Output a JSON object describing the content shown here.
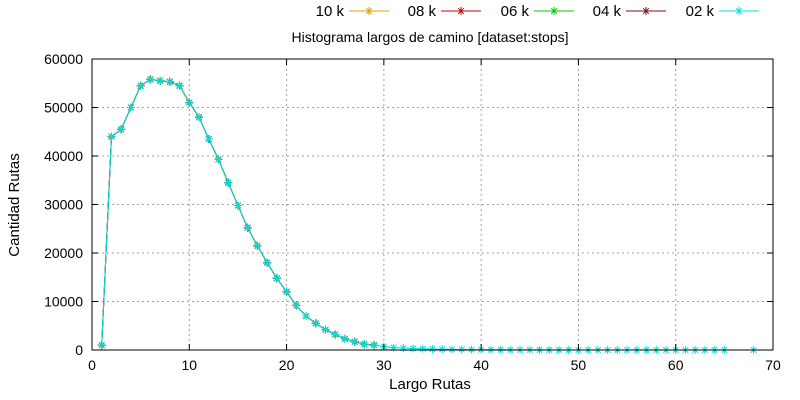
{
  "chart_data": {
    "type": "line",
    "title": "Histograma largos de camino [dataset:stops]",
    "xlabel": "Largo Rutas",
    "ylabel": "Cantidad Rutas",
    "xlim": [
      0,
      70
    ],
    "ylim": [
      0,
      60000
    ],
    "xticks": [
      0,
      10,
      20,
      30,
      40,
      50,
      60,
      70
    ],
    "yticks": [
      0,
      10000,
      20000,
      30000,
      40000,
      50000,
      60000
    ],
    "grid": true,
    "legend_position": "top",
    "series": [
      {
        "name": "10 k",
        "color": "#e0a000",
        "x": [
          1,
          2,
          3,
          4,
          5,
          6,
          7,
          8,
          9,
          10,
          11,
          12,
          13,
          14,
          15,
          16,
          17,
          18,
          19,
          20,
          21,
          22,
          23,
          24,
          25,
          26,
          27,
          28,
          29
        ],
        "y": [
          1000,
          44000,
          45500,
          50000,
          54500,
          55800,
          55500,
          55300,
          54500,
          51000,
          48000,
          43500,
          39300,
          34500,
          29800,
          25200,
          21500,
          18000,
          14800,
          12000,
          9200,
          7000,
          5500,
          4200,
          3200,
          2300,
          1700,
          1200,
          1000
        ]
      },
      {
        "name": "08 k",
        "color": "#cc0000",
        "x": [
          1,
          2,
          3,
          4,
          5,
          6,
          7,
          8,
          9,
          10,
          11,
          12,
          13,
          14,
          15,
          16,
          17,
          18,
          19,
          20,
          21,
          22,
          23,
          24,
          25,
          26,
          27,
          28,
          29
        ],
        "y": [
          1000,
          44000,
          45500,
          50000,
          54500,
          55800,
          55500,
          55300,
          54500,
          51000,
          48000,
          43500,
          39300,
          34500,
          29800,
          25200,
          21500,
          18000,
          14800,
          12000,
          9200,
          7000,
          5500,
          4200,
          3200,
          2300,
          1700,
          1200,
          1000
        ]
      },
      {
        "name": "06 k",
        "color": "#00cc00",
        "x": [
          1,
          2,
          3,
          4,
          5,
          6,
          7,
          8,
          9,
          10,
          11,
          12,
          13,
          14,
          15,
          16,
          17,
          18,
          19,
          20,
          21,
          22,
          23,
          24,
          25,
          26,
          27,
          28,
          29
        ],
        "y": [
          1000,
          44000,
          45500,
          50000,
          54500,
          55800,
          55500,
          55300,
          54500,
          51000,
          48000,
          43500,
          39300,
          34500,
          29800,
          25200,
          21500,
          18000,
          14800,
          12000,
          9200,
          7000,
          5500,
          4200,
          3200,
          2300,
          1700,
          1200,
          1000
        ]
      },
      {
        "name": "04 k",
        "color": "#7a1020",
        "x": [
          1,
          2,
          3,
          4,
          5,
          6,
          7,
          8,
          9,
          10,
          11,
          12,
          13,
          14,
          15,
          16,
          17,
          18,
          19,
          20,
          21,
          22,
          23,
          24,
          25,
          26,
          27,
          28,
          29
        ],
        "y": [
          1000,
          44000,
          45500,
          50000,
          54500,
          55800,
          55500,
          55300,
          54500,
          51000,
          48000,
          43500,
          39300,
          34500,
          29800,
          25200,
          21500,
          18000,
          14800,
          12000,
          9200,
          7000,
          5500,
          4200,
          3200,
          2300,
          1700,
          1200,
          1000
        ]
      },
      {
        "name": "02 k",
        "color": "#00e0e0",
        "x": [
          1,
          2,
          3,
          4,
          5,
          6,
          7,
          8,
          9,
          10,
          11,
          12,
          13,
          14,
          15,
          16,
          17,
          18,
          19,
          20,
          21,
          22,
          23,
          24,
          25,
          26,
          27,
          28,
          29,
          30,
          31,
          32,
          33,
          34,
          35,
          36,
          37,
          38,
          39,
          40,
          41,
          42,
          43,
          44,
          45,
          46,
          47,
          48,
          49,
          50,
          51,
          52,
          53,
          54,
          55,
          56,
          57,
          58,
          59,
          60,
          61,
          62,
          63,
          64,
          65,
          68
        ],
        "y": [
          1000,
          44000,
          45500,
          50000,
          54500,
          55800,
          55500,
          55300,
          54500,
          51000,
          48000,
          43500,
          39300,
          34500,
          29800,
          25200,
          21500,
          18000,
          14800,
          12000,
          9200,
          7000,
          5500,
          4200,
          3200,
          2300,
          1700,
          1200,
          1000,
          700,
          500,
          400,
          320,
          260,
          200,
          160,
          130,
          100,
          80,
          60,
          50,
          40,
          30,
          25,
          20,
          16,
          13,
          10,
          8,
          6,
          5,
          4,
          3,
          3,
          2,
          2,
          1,
          1,
          1,
          1,
          1,
          1,
          1,
          1,
          1,
          1
        ]
      }
    ]
  }
}
